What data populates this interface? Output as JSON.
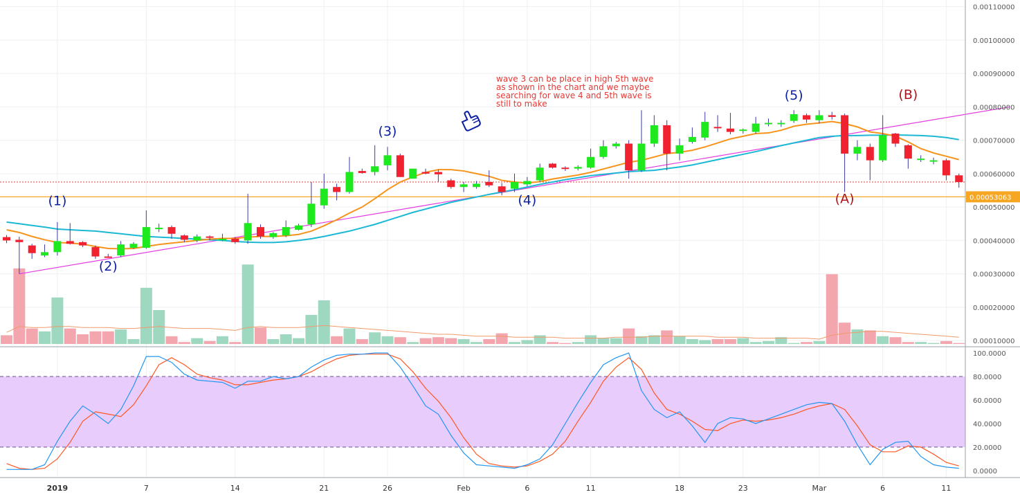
{
  "chart_data": [
    {
      "type": "candlestick",
      "panel": "price",
      "y_scale_max": 0.00112,
      "y_scale_min": 9e-05,
      "y_tick_labels": [
        "0.00110000",
        "0.00100000",
        "0.00090000",
        "0.00080000",
        "0.00070000",
        "0.00060000",
        "0.00050000",
        "0.00040000",
        "0.00030000",
        "0.00020000",
        "0.00010000"
      ],
      "y_tick_values": [
        0.0011,
        0.001,
        0.0009,
        0.0008,
        0.0007,
        0.0006,
        0.0005,
        0.0004,
        0.0003,
        0.0002,
        0.0001
      ],
      "x_tick_labels": [
        "2019",
        "7",
        "14",
        "21",
        "26",
        "Feb",
        "6",
        "11",
        "18",
        "23",
        "Mar",
        "6",
        "11"
      ],
      "x_tick_index": [
        4,
        11,
        18,
        25,
        30,
        36,
        41,
        46,
        53,
        58,
        64,
        69,
        74
      ],
      "price_marker_label": "0.00053063",
      "price_marker_value": 0.00053063,
      "current_price_dotted": 0.000575,
      "candles": [
        {
          "o": 0.00041,
          "h": 0.000416,
          "l": 0.000392,
          "c": 0.0004
        },
        {
          "o": 0.000402,
          "h": 0.000411,
          "l": 0.0003,
          "c": 0.000395
        },
        {
          "o": 0.000385,
          "h": 0.00039,
          "l": 0.000345,
          "c": 0.000362
        },
        {
          "o": 0.000355,
          "h": 0.000388,
          "l": 0.00035,
          "c": 0.000365
        },
        {
          "o": 0.000365,
          "h": 0.000455,
          "l": 0.000355,
          "c": 0.000398
        },
        {
          "o": 0.000398,
          "h": 0.000452,
          "l": 0.000388,
          "c": 0.00039
        },
        {
          "o": 0.000395,
          "h": 0.000398,
          "l": 0.00038,
          "c": 0.000385
        },
        {
          "o": 0.00038,
          "h": 0.000385,
          "l": 0.000345,
          "c": 0.000352
        },
        {
          "o": 0.000352,
          "h": 0.00036,
          "l": 0.000348,
          "c": 0.00035
        },
        {
          "o": 0.000355,
          "h": 0.000398,
          "l": 0.00035,
          "c": 0.000388
        },
        {
          "o": 0.000378,
          "h": 0.000395,
          "l": 0.000375,
          "c": 0.00039
        },
        {
          "o": 0.000378,
          "h": 0.00049,
          "l": 0.000375,
          "c": 0.00044
        },
        {
          "o": 0.000438,
          "h": 0.00045,
          "l": 0.000425,
          "c": 0.000438
        },
        {
          "o": 0.00044,
          "h": 0.000445,
          "l": 0.000405,
          "c": 0.00042
        },
        {
          "o": 0.000415,
          "h": 0.000418,
          "l": 0.000395,
          "c": 0.000402
        },
        {
          "o": 0.0004,
          "h": 0.000418,
          "l": 0.000395,
          "c": 0.000412
        },
        {
          "o": 0.000412,
          "h": 0.000415,
          "l": 0.0004,
          "c": 0.00041
        },
        {
          "o": 0.000402,
          "h": 0.00042,
          "l": 0.000398,
          "c": 0.000405
        },
        {
          "o": 0.000405,
          "h": 0.00041,
          "l": 0.00039,
          "c": 0.000395
        },
        {
          "o": 0.0004,
          "h": 0.00054,
          "l": 0.00039,
          "c": 0.000452
        },
        {
          "o": 0.00044,
          "h": 0.000448,
          "l": 0.000405,
          "c": 0.000412
        },
        {
          "o": 0.00041,
          "h": 0.000425,
          "l": 0.000405,
          "c": 0.000422
        },
        {
          "o": 0.000415,
          "h": 0.00046,
          "l": 0.00041,
          "c": 0.00044
        },
        {
          "o": 0.000432,
          "h": 0.00045,
          "l": 0.00043,
          "c": 0.000445
        },
        {
          "o": 0.000448,
          "h": 0.000575,
          "l": 0.00044,
          "c": 0.00051
        },
        {
          "o": 0.000505,
          "h": 0.0006,
          "l": 0.000495,
          "c": 0.000555
        },
        {
          "o": 0.00056,
          "h": 0.00057,
          "l": 0.00052,
          "c": 0.000545
        },
        {
          "o": 0.000545,
          "h": 0.00065,
          "l": 0.00054,
          "c": 0.000605
        },
        {
          "o": 0.000608,
          "h": 0.000615,
          "l": 0.0006,
          "c": 0.000602
        },
        {
          "o": 0.000605,
          "h": 0.000685,
          "l": 0.000595,
          "c": 0.000622
        },
        {
          "o": 0.000625,
          "h": 0.00068,
          "l": 0.00061,
          "c": 0.000655
        },
        {
          "o": 0.000655,
          "h": 0.00066,
          "l": 0.00059,
          "c": 0.00059
        },
        {
          "o": 0.000585,
          "h": 0.000615,
          "l": 0.000585,
          "c": 0.000615
        },
        {
          "o": 0.000605,
          "h": 0.000615,
          "l": 0.000598,
          "c": 0.0006
        },
        {
          "o": 0.000605,
          "h": 0.000612,
          "l": 0.000575,
          "c": 0.000598
        },
        {
          "o": 0.00058,
          "h": 0.000585,
          "l": 0.000555,
          "c": 0.00056
        },
        {
          "o": 0.00056,
          "h": 0.000575,
          "l": 0.000545,
          "c": 0.000568
        },
        {
          "o": 0.00056,
          "h": 0.000578,
          "l": 0.000555,
          "c": 0.00057
        },
        {
          "o": 0.000575,
          "h": 0.00061,
          "l": 0.00056,
          "c": 0.000565
        },
        {
          "o": 0.000562,
          "h": 0.000572,
          "l": 0.000535,
          "c": 0.000545
        },
        {
          "o": 0.000555,
          "h": 0.0006,
          "l": 0.000545,
          "c": 0.000575
        },
        {
          "o": 0.000568,
          "h": 0.00059,
          "l": 0.000562,
          "c": 0.000578
        },
        {
          "o": 0.00058,
          "h": 0.00063,
          "l": 0.000575,
          "c": 0.000618
        },
        {
          "o": 0.00063,
          "h": 0.000632,
          "l": 0.000615,
          "c": 0.000618
        },
        {
          "o": 0.000618,
          "h": 0.000622,
          "l": 0.000608,
          "c": 0.000615
        },
        {
          "o": 0.000615,
          "h": 0.000625,
          "l": 0.00061,
          "c": 0.00062
        },
        {
          "o": 0.000618,
          "h": 0.000675,
          "l": 0.000615,
          "c": 0.00065
        },
        {
          "o": 0.00065,
          "h": 0.0007,
          "l": 0.000645,
          "c": 0.000682
        },
        {
          "o": 0.000682,
          "h": 0.000695,
          "l": 0.000675,
          "c": 0.00069
        },
        {
          "o": 0.00069,
          "h": 0.0007,
          "l": 0.000585,
          "c": 0.00061
        },
        {
          "o": 0.00061,
          "h": 0.00079,
          "l": 0.000605,
          "c": 0.00069
        },
        {
          "o": 0.00069,
          "h": 0.000775,
          "l": 0.00068,
          "c": 0.000745
        },
        {
          "o": 0.000745,
          "h": 0.00076,
          "l": 0.00061,
          "c": 0.00066
        },
        {
          "o": 0.00066,
          "h": 0.000705,
          "l": 0.00064,
          "c": 0.000685
        },
        {
          "o": 0.000695,
          "h": 0.000738,
          "l": 0.00069,
          "c": 0.00071
        },
        {
          "o": 0.000708,
          "h": 0.000785,
          "l": 0.0007,
          "c": 0.000755
        },
        {
          "o": 0.00074,
          "h": 0.000775,
          "l": 0.000725,
          "c": 0.000738
        },
        {
          "o": 0.000735,
          "h": 0.000782,
          "l": 0.000718,
          "c": 0.000725
        },
        {
          "o": 0.000728,
          "h": 0.000735,
          "l": 0.00072,
          "c": 0.000732
        },
        {
          "o": 0.000725,
          "h": 0.00077,
          "l": 0.00072,
          "c": 0.00075
        },
        {
          "o": 0.000748,
          "h": 0.000765,
          "l": 0.000742,
          "c": 0.000752
        },
        {
          "o": 0.00075,
          "h": 0.00076,
          "l": 0.00074,
          "c": 0.000752
        },
        {
          "o": 0.000758,
          "h": 0.00079,
          "l": 0.000752,
          "c": 0.000778
        },
        {
          "o": 0.000775,
          "h": 0.00078,
          "l": 0.000752,
          "c": 0.000762
        },
        {
          "o": 0.00076,
          "h": 0.00079,
          "l": 0.00075,
          "c": 0.000775
        },
        {
          "o": 0.000775,
          "h": 0.000785,
          "l": 0.000762,
          "c": 0.00077
        },
        {
          "o": 0.000775,
          "h": 0.00078,
          "l": 0.000545,
          "c": 0.00066
        },
        {
          "o": 0.00066,
          "h": 0.0007,
          "l": 0.00064,
          "c": 0.00068
        },
        {
          "o": 0.00068,
          "h": 0.00069,
          "l": 0.00058,
          "c": 0.00064
        },
        {
          "o": 0.00064,
          "h": 0.000775,
          "l": 0.000635,
          "c": 0.000715
        },
        {
          "o": 0.00072,
          "h": 0.000722,
          "l": 0.00068,
          "c": 0.00069
        },
        {
          "o": 0.000685,
          "h": 0.000688,
          "l": 0.000615,
          "c": 0.000645
        },
        {
          "o": 0.000645,
          "h": 0.000655,
          "l": 0.000635,
          "c": 0.000645
        },
        {
          "o": 0.00064,
          "h": 0.000648,
          "l": 0.000628,
          "c": 0.00064
        },
        {
          "o": 0.00064,
          "h": 0.000645,
          "l": 0.00058,
          "c": 0.000595
        },
        {
          "o": 0.000595,
          "h": 0.0006,
          "l": 0.000558,
          "c": 0.000575
        }
      ],
      "ma_fast": [
        0.000432,
        0.000424,
        0.000412,
        0.000402,
        0.000394,
        0.000392,
        0.000389,
        0.000382,
        0.000376,
        0.000375,
        0.000376,
        0.000382,
        0.000388,
        0.000392,
        0.000396,
        0.0004,
        0.000404,
        0.000406,
        0.000406,
        0.00041,
        0.000412,
        0.000412,
        0.000414,
        0.000418,
        0.000428,
        0.000444,
        0.000462,
        0.000482,
        0.0005,
        0.000525,
        0.000552,
        0.000575,
        0.00059,
        0.000604,
        0.000612,
        0.000612,
        0.000608,
        0.0006,
        0.000592,
        0.00058,
        0.000575,
        0.000572,
        0.000576,
        0.000584,
        0.00059,
        0.000596,
        0.000604,
        0.000614,
        0.000624,
        0.000634,
        0.00064,
        0.00065,
        0.00066,
        0.000664,
        0.00067,
        0.00068,
        0.000692,
        0.000704,
        0.000712,
        0.00072,
        0.000722,
        0.00073,
        0.000742,
        0.000748,
        0.000752,
        0.000756,
        0.00075,
        0.00074,
        0.000725,
        0.00072,
        0.000712,
        0.000695,
        0.000675,
        0.000662,
        0.000652,
        0.000642
      ],
      "ma_slow": [
        0.000455,
        0.00045,
        0.000445,
        0.00044,
        0.000434,
        0.000432,
        0.00043,
        0.000428,
        0.000424,
        0.00042,
        0.000416,
        0.000412,
        0.00041,
        0.000408,
        0.000406,
        0.000404,
        0.000402,
        0.0004,
        0.000397,
        0.000395,
        0.000394,
        0.000394,
        0.000396,
        0.0004,
        0.000405,
        0.000412,
        0.00042,
        0.000428,
        0.000438,
        0.000448,
        0.00046,
        0.000472,
        0.000484,
        0.000494,
        0.000504,
        0.000514,
        0.000522,
        0.00053,
        0.000538,
        0.000545,
        0.000552,
        0.00056,
        0.000568,
        0.000575,
        0.000582,
        0.000588,
        0.000594,
        0.000598,
        0.000602,
        0.000606,
        0.000608,
        0.00061,
        0.000615,
        0.00062,
        0.000626,
        0.000634,
        0.000642,
        0.00065,
        0.000658,
        0.000666,
        0.000675,
        0.000684,
        0.000692,
        0.0007,
        0.000708,
        0.000712,
        0.000714,
        0.000714,
        0.000715,
        0.000715,
        0.000716,
        0.000715,
        0.000714,
        0.000712,
        0.000708,
        0.000702
      ],
      "trendline": {
        "i1": 1,
        "v1": 0.0003,
        "i2": 79,
        "v2": 0.0008
      },
      "volume": [
        0.09,
        0.78,
        0.16,
        0.13,
        0.48,
        0.16,
        0.1,
        0.13,
        0.13,
        0.15,
        0.05,
        0.58,
        0.35,
        0.08,
        0.02,
        0.06,
        0.03,
        0.08,
        0.02,
        0.82,
        0.17,
        0.05,
        0.1,
        0.06,
        0.3,
        0.45,
        0.08,
        0.16,
        0.05,
        0.12,
        0.08,
        0.07,
        0.02,
        0.06,
        0.07,
        0.06,
        0.05,
        0.02,
        0.05,
        0.11,
        0.02,
        0.04,
        0.09,
        0.02,
        0.01,
        0.02,
        0.09,
        0.06,
        0.06,
        0.16,
        0.08,
        0.09,
        0.14,
        0.08,
        0.05,
        0.04,
        0.05,
        0.05,
        0.06,
        0.02,
        0.03,
        0.07,
        0.01,
        0.02,
        0.03,
        0.72,
        0.22,
        0.15,
        0.14,
        0.08,
        0.07,
        0.02,
        0.02,
        0.01,
        0.03,
        0.01
      ],
      "volume_ma": [
        0.12,
        0.18,
        0.17,
        0.17,
        0.18,
        0.18,
        0.17,
        0.17,
        0.17,
        0.16,
        0.16,
        0.17,
        0.18,
        0.17,
        0.16,
        0.16,
        0.16,
        0.15,
        0.14,
        0.17,
        0.18,
        0.17,
        0.17,
        0.17,
        0.18,
        0.19,
        0.18,
        0.17,
        0.16,
        0.15,
        0.14,
        0.13,
        0.12,
        0.11,
        0.1,
        0.1,
        0.09,
        0.08,
        0.08,
        0.08,
        0.07,
        0.07,
        0.07,
        0.07,
        0.06,
        0.06,
        0.06,
        0.06,
        0.07,
        0.07,
        0.07,
        0.08,
        0.08,
        0.08,
        0.08,
        0.08,
        0.07,
        0.07,
        0.07,
        0.06,
        0.06,
        0.06,
        0.06,
        0.06,
        0.05,
        0.09,
        0.11,
        0.12,
        0.13,
        0.13,
        0.12,
        0.11,
        0.1,
        0.09,
        0.08,
        0.07
      ]
    },
    {
      "type": "line",
      "panel": "oscillator",
      "y_tick_labels": [
        "100.0000",
        "80.0000",
        "60.0000",
        "40.0000",
        "20.0000",
        "0.0000"
      ],
      "y_tick_values": [
        100,
        80,
        60,
        40,
        20,
        0
      ],
      "band": [
        20,
        80
      ],
      "k": [
        1,
        1,
        1,
        5,
        25,
        42,
        55,
        48,
        40,
        52,
        72,
        97,
        97,
        92,
        82,
        77,
        76,
        75,
        70,
        76,
        76,
        80,
        78,
        80,
        88,
        94,
        98,
        99,
        99,
        100,
        100,
        88,
        72,
        55,
        48,
        30,
        15,
        5,
        4,
        3,
        2,
        5,
        10,
        22,
        40,
        58,
        75,
        90,
        96,
        100,
        68,
        52,
        45,
        50,
        38,
        24,
        40,
        45,
        44,
        40,
        44,
        48,
        52,
        56,
        58,
        57,
        42,
        22,
        5,
        18,
        24,
        25,
        12,
        5,
        3,
        2
      ],
      "d": [
        6,
        2,
        1,
        2,
        10,
        24,
        42,
        50,
        48,
        46,
        56,
        72,
        90,
        96,
        90,
        82,
        79,
        77,
        73,
        73,
        75,
        77,
        78,
        80,
        84,
        90,
        95,
        98,
        99,
        99,
        99,
        95,
        84,
        70,
        59,
        45,
        28,
        14,
        6,
        4,
        3,
        4,
        8,
        14,
        25,
        42,
        58,
        76,
        88,
        96,
        86,
        66,
        52,
        48,
        42,
        35,
        34,
        40,
        43,
        42,
        43,
        45,
        48,
        52,
        55,
        57,
        52,
        38,
        22,
        16,
        16,
        21,
        20,
        14,
        7,
        4
      ]
    }
  ],
  "annotation_note": "wave 3 can be place in high 5th wave\nas shown in the chart and we maybe\nsearching for wave 4 and 5th wave is\nstill to make",
  "wave_labels": [
    {
      "text": "(1)",
      "idx": 4,
      "price": 0.000506,
      "color": "#0b1fa3"
    },
    {
      "text": "(2)",
      "idx": 8,
      "price": 0.00031,
      "color": "#0b1fa3"
    },
    {
      "text": "(3)",
      "idx": 30,
      "price": 0.000714,
      "color": "#0b1fa3"
    },
    {
      "text": "(4)",
      "idx": 41,
      "price": 0.000508,
      "color": "#0b1fa3"
    },
    {
      "text": "(5)",
      "idx": 62,
      "price": 0.000822,
      "color": "#0b1fa3"
    },
    {
      "text": "(A)",
      "idx": 66,
      "price": 0.000512,
      "color": "#b0131a"
    },
    {
      "text": "(B)",
      "idx": 71,
      "price": 0.000824,
      "color": "#b0131a"
    }
  ],
  "colors": {
    "up": "#1ee81e",
    "down": "#f0222f",
    "ma_fast": "#f7931a",
    "ma_slow": "#1ab8d4",
    "trend": "#e33be0",
    "marker": "#f5a623",
    "vol_up": "#9fd8c0",
    "vol_down": "#f3a6ae",
    "vol_ma": "#f09a6a",
    "k": "#2196f3",
    "d": "#ff5722",
    "band": "#e8ccfb",
    "note": "#e53935"
  },
  "icons": {
    "annotation": "pointing-hand-icon"
  }
}
